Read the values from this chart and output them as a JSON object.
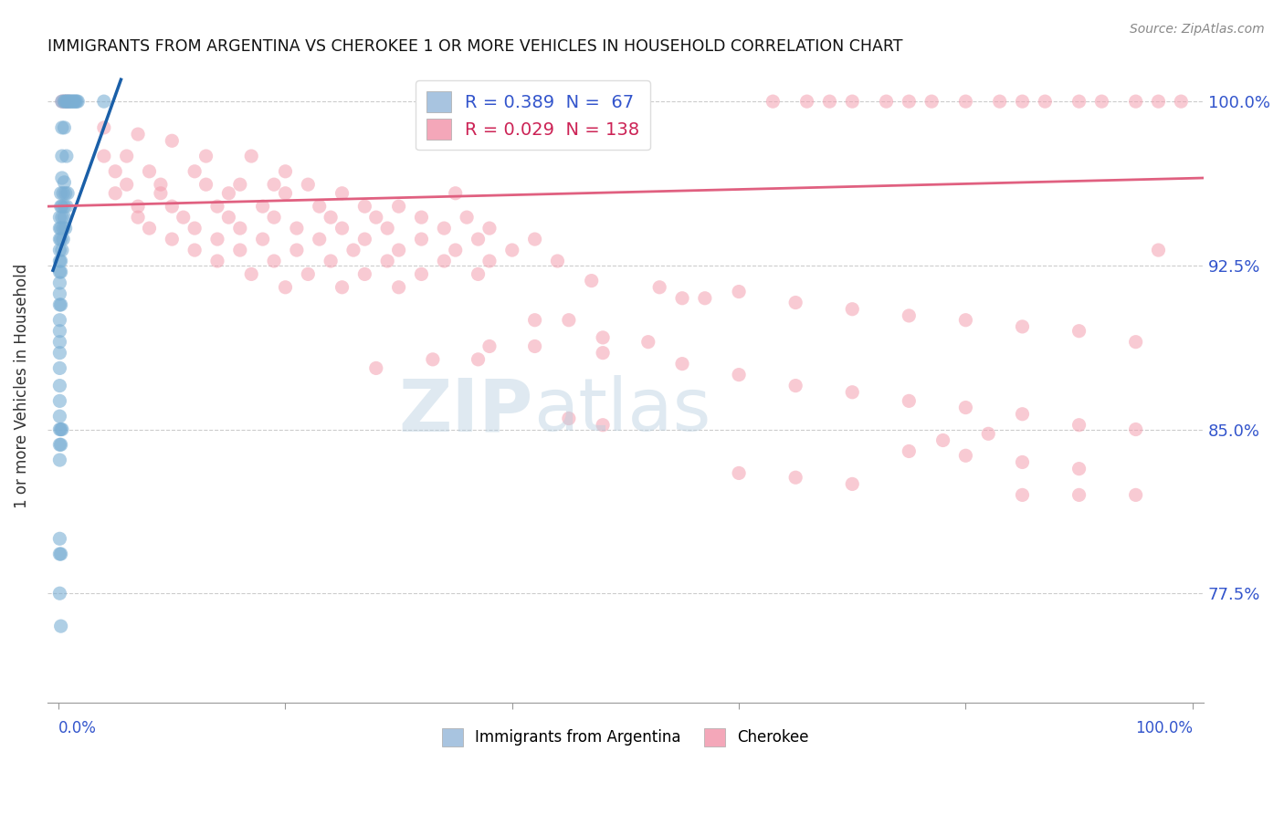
{
  "title": "IMMIGRANTS FROM ARGENTINA VS CHEROKEE 1 OR MORE VEHICLES IN HOUSEHOLD CORRELATION CHART",
  "source": "Source: ZipAtlas.com",
  "ylabel": "1 or more Vehicles in Household",
  "xlim": [
    -0.01,
    1.01
  ],
  "ylim": [
    0.725,
    1.015
  ],
  "yticks": [
    0.775,
    0.85,
    0.925,
    1.0
  ],
  "ytick_labels": [
    "77.5%",
    "85.0%",
    "92.5%",
    "100.0%"
  ],
  "blue_color": "#7bafd4",
  "pink_color": "#f4a0b0",
  "blue_line_color": "#1a5fa8",
  "pink_line_color": "#e06080",
  "legend_blue_color": "#a8c4e0",
  "legend_pink_color": "#f4a7b9",
  "blue_R": "0.389",
  "blue_N": "67",
  "pink_R": "0.029",
  "pink_N": "138",
  "blue_scatter": [
    [
      0.003,
      1.0
    ],
    [
      0.005,
      1.0
    ],
    [
      0.006,
      1.0
    ],
    [
      0.007,
      1.0
    ],
    [
      0.008,
      1.0
    ],
    [
      0.009,
      1.0
    ],
    [
      0.01,
      1.0
    ],
    [
      0.011,
      1.0
    ],
    [
      0.012,
      1.0
    ],
    [
      0.013,
      1.0
    ],
    [
      0.014,
      1.0
    ],
    [
      0.015,
      1.0
    ],
    [
      0.016,
      1.0
    ],
    [
      0.017,
      1.0
    ],
    [
      0.04,
      1.0
    ],
    [
      0.003,
      0.988
    ],
    [
      0.005,
      0.988
    ],
    [
      0.003,
      0.975
    ],
    [
      0.007,
      0.975
    ],
    [
      0.003,
      0.965
    ],
    [
      0.005,
      0.963
    ],
    [
      0.002,
      0.958
    ],
    [
      0.004,
      0.958
    ],
    [
      0.006,
      0.958
    ],
    [
      0.008,
      0.958
    ],
    [
      0.002,
      0.952
    ],
    [
      0.003,
      0.952
    ],
    [
      0.005,
      0.952
    ],
    [
      0.007,
      0.952
    ],
    [
      0.001,
      0.947
    ],
    [
      0.003,
      0.947
    ],
    [
      0.005,
      0.947
    ],
    [
      0.001,
      0.942
    ],
    [
      0.002,
      0.942
    ],
    [
      0.004,
      0.942
    ],
    [
      0.006,
      0.942
    ],
    [
      0.001,
      0.937
    ],
    [
      0.002,
      0.937
    ],
    [
      0.004,
      0.937
    ],
    [
      0.001,
      0.932
    ],
    [
      0.003,
      0.932
    ],
    [
      0.001,
      0.927
    ],
    [
      0.002,
      0.927
    ],
    [
      0.001,
      0.922
    ],
    [
      0.002,
      0.922
    ],
    [
      0.001,
      0.917
    ],
    [
      0.001,
      0.912
    ],
    [
      0.001,
      0.907
    ],
    [
      0.002,
      0.907
    ],
    [
      0.001,
      0.9
    ],
    [
      0.001,
      0.895
    ],
    [
      0.001,
      0.89
    ],
    [
      0.001,
      0.885
    ],
    [
      0.001,
      0.878
    ],
    [
      0.001,
      0.87
    ],
    [
      0.001,
      0.863
    ],
    [
      0.001,
      0.856
    ],
    [
      0.001,
      0.85
    ],
    [
      0.002,
      0.85
    ],
    [
      0.003,
      0.85
    ],
    [
      0.001,
      0.843
    ],
    [
      0.002,
      0.843
    ],
    [
      0.001,
      0.836
    ],
    [
      0.001,
      0.8
    ],
    [
      0.001,
      0.793
    ],
    [
      0.002,
      0.793
    ],
    [
      0.001,
      0.775
    ],
    [
      0.002,
      0.76
    ]
  ],
  "pink_scatter": [
    [
      0.003,
      1.0
    ],
    [
      0.005,
      1.0
    ],
    [
      0.007,
      1.0
    ],
    [
      0.009,
      1.0
    ],
    [
      0.63,
      1.0
    ],
    [
      0.66,
      1.0
    ],
    [
      0.68,
      1.0
    ],
    [
      0.7,
      1.0
    ],
    [
      0.73,
      1.0
    ],
    [
      0.75,
      1.0
    ],
    [
      0.77,
      1.0
    ],
    [
      0.8,
      1.0
    ],
    [
      0.83,
      1.0
    ],
    [
      0.85,
      1.0
    ],
    [
      0.87,
      1.0
    ],
    [
      0.9,
      1.0
    ],
    [
      0.92,
      1.0
    ],
    [
      0.95,
      1.0
    ],
    [
      0.97,
      1.0
    ],
    [
      0.99,
      1.0
    ],
    [
      0.04,
      0.988
    ],
    [
      0.07,
      0.985
    ],
    [
      0.1,
      0.982
    ],
    [
      0.04,
      0.975
    ],
    [
      0.06,
      0.975
    ],
    [
      0.13,
      0.975
    ],
    [
      0.17,
      0.975
    ],
    [
      0.05,
      0.968
    ],
    [
      0.08,
      0.968
    ],
    [
      0.12,
      0.968
    ],
    [
      0.2,
      0.968
    ],
    [
      0.06,
      0.962
    ],
    [
      0.09,
      0.962
    ],
    [
      0.13,
      0.962
    ],
    [
      0.16,
      0.962
    ],
    [
      0.19,
      0.962
    ],
    [
      0.22,
      0.962
    ],
    [
      0.05,
      0.958
    ],
    [
      0.09,
      0.958
    ],
    [
      0.15,
      0.958
    ],
    [
      0.2,
      0.958
    ],
    [
      0.25,
      0.958
    ],
    [
      0.35,
      0.958
    ],
    [
      0.07,
      0.952
    ],
    [
      0.1,
      0.952
    ],
    [
      0.14,
      0.952
    ],
    [
      0.18,
      0.952
    ],
    [
      0.23,
      0.952
    ],
    [
      0.27,
      0.952
    ],
    [
      0.3,
      0.952
    ],
    [
      0.07,
      0.947
    ],
    [
      0.11,
      0.947
    ],
    [
      0.15,
      0.947
    ],
    [
      0.19,
      0.947
    ],
    [
      0.24,
      0.947
    ],
    [
      0.28,
      0.947
    ],
    [
      0.32,
      0.947
    ],
    [
      0.36,
      0.947
    ],
    [
      0.08,
      0.942
    ],
    [
      0.12,
      0.942
    ],
    [
      0.16,
      0.942
    ],
    [
      0.21,
      0.942
    ],
    [
      0.25,
      0.942
    ],
    [
      0.29,
      0.942
    ],
    [
      0.34,
      0.942
    ],
    [
      0.38,
      0.942
    ],
    [
      0.1,
      0.937
    ],
    [
      0.14,
      0.937
    ],
    [
      0.18,
      0.937
    ],
    [
      0.23,
      0.937
    ],
    [
      0.27,
      0.937
    ],
    [
      0.32,
      0.937
    ],
    [
      0.37,
      0.937
    ],
    [
      0.42,
      0.937
    ],
    [
      0.12,
      0.932
    ],
    [
      0.16,
      0.932
    ],
    [
      0.21,
      0.932
    ],
    [
      0.26,
      0.932
    ],
    [
      0.3,
      0.932
    ],
    [
      0.35,
      0.932
    ],
    [
      0.4,
      0.932
    ],
    [
      0.14,
      0.927
    ],
    [
      0.19,
      0.927
    ],
    [
      0.24,
      0.927
    ],
    [
      0.29,
      0.927
    ],
    [
      0.34,
      0.927
    ],
    [
      0.38,
      0.927
    ],
    [
      0.44,
      0.927
    ],
    [
      0.17,
      0.921
    ],
    [
      0.22,
      0.921
    ],
    [
      0.27,
      0.921
    ],
    [
      0.32,
      0.921
    ],
    [
      0.37,
      0.921
    ],
    [
      0.47,
      0.918
    ],
    [
      0.53,
      0.915
    ],
    [
      0.2,
      0.915
    ],
    [
      0.25,
      0.915
    ],
    [
      0.3,
      0.915
    ],
    [
      0.6,
      0.913
    ],
    [
      0.55,
      0.91
    ],
    [
      0.57,
      0.91
    ],
    [
      0.65,
      0.908
    ],
    [
      0.7,
      0.905
    ],
    [
      0.75,
      0.902
    ],
    [
      0.42,
      0.9
    ],
    [
      0.45,
      0.9
    ],
    [
      0.8,
      0.9
    ],
    [
      0.85,
      0.897
    ],
    [
      0.9,
      0.895
    ],
    [
      0.48,
      0.892
    ],
    [
      0.52,
      0.89
    ],
    [
      0.95,
      0.89
    ],
    [
      0.38,
      0.888
    ],
    [
      0.42,
      0.888
    ],
    [
      0.48,
      0.885
    ],
    [
      0.33,
      0.882
    ],
    [
      0.37,
      0.882
    ],
    [
      0.55,
      0.88
    ],
    [
      0.28,
      0.878
    ],
    [
      0.6,
      0.875
    ],
    [
      0.65,
      0.87
    ],
    [
      0.7,
      0.867
    ],
    [
      0.75,
      0.863
    ],
    [
      0.8,
      0.86
    ],
    [
      0.85,
      0.857
    ],
    [
      0.45,
      0.855
    ],
    [
      0.48,
      0.852
    ],
    [
      0.9,
      0.852
    ],
    [
      0.95,
      0.85
    ],
    [
      0.97,
      0.932
    ],
    [
      0.75,
      0.84
    ],
    [
      0.8,
      0.838
    ],
    [
      0.85,
      0.835
    ],
    [
      0.9,
      0.832
    ],
    [
      0.6,
      0.83
    ],
    [
      0.65,
      0.828
    ],
    [
      0.7,
      0.825
    ],
    [
      0.85,
      0.82
    ],
    [
      0.9,
      0.82
    ],
    [
      0.95,
      0.82
    ],
    [
      0.82,
      0.848
    ],
    [
      0.78,
      0.845
    ]
  ]
}
